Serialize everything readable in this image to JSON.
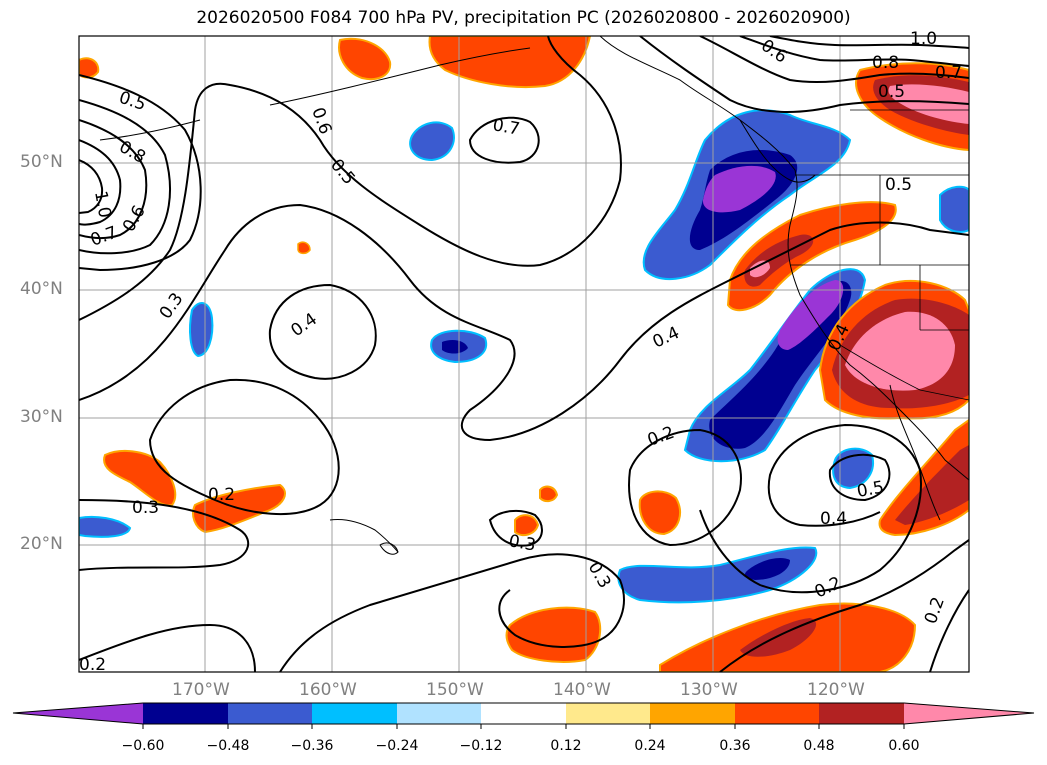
{
  "title": "2026020500 F084 700 hPa PV, precipitation PC (2026020800 - 2026020900)",
  "lat_labels": [
    "50°N",
    "40°N",
    "30°N",
    "20°N"
  ],
  "lon_labels": [
    "170°W",
    "160°W",
    "150°W",
    "140°W",
    "130°W",
    "120°W"
  ],
  "contour_labels": [
    "0.5",
    "0.6",
    "0.8",
    "1.0",
    "0.7",
    "0.6",
    "0.5",
    "0.7",
    "0.6",
    "0.8",
    "1.0",
    "0.7",
    "0.5",
    "0.3",
    "0.4",
    "0.4",
    "0.2",
    "0.2",
    "0.3",
    "0.3",
    "0.3",
    "0.5",
    "0.4",
    "0.2",
    "0.2",
    "0.4",
    "0.5",
    "0.2"
  ],
  "colorbar": {
    "ticks": [
      "−0.60",
      "−0.48",
      "−0.36",
      "−0.24",
      "−0.12",
      "0.12",
      "0.24",
      "0.36",
      "0.48",
      "0.60"
    ],
    "colors": [
      "#9a35d6",
      "#000090",
      "#3b5bd0",
      "#00bfff",
      "#b0e2ff",
      "#ffffff",
      "#ffe98c",
      "#ffa500",
      "#ff4500",
      "#b22222",
      "#ff88aa"
    ]
  },
  "legend_colors": {
    "neg_purple": "#9a35d6",
    "neg_navy": "#000090",
    "neg_blue": "#3b5bd0",
    "neg_cyan": "#00bfff",
    "pos_yellow": "#ffe98c",
    "pos_orange": "#ffa500",
    "pos_redorange": "#ff4500",
    "pos_firebrick": "#b22222",
    "pos_pink": "#ff88aa"
  }
}
